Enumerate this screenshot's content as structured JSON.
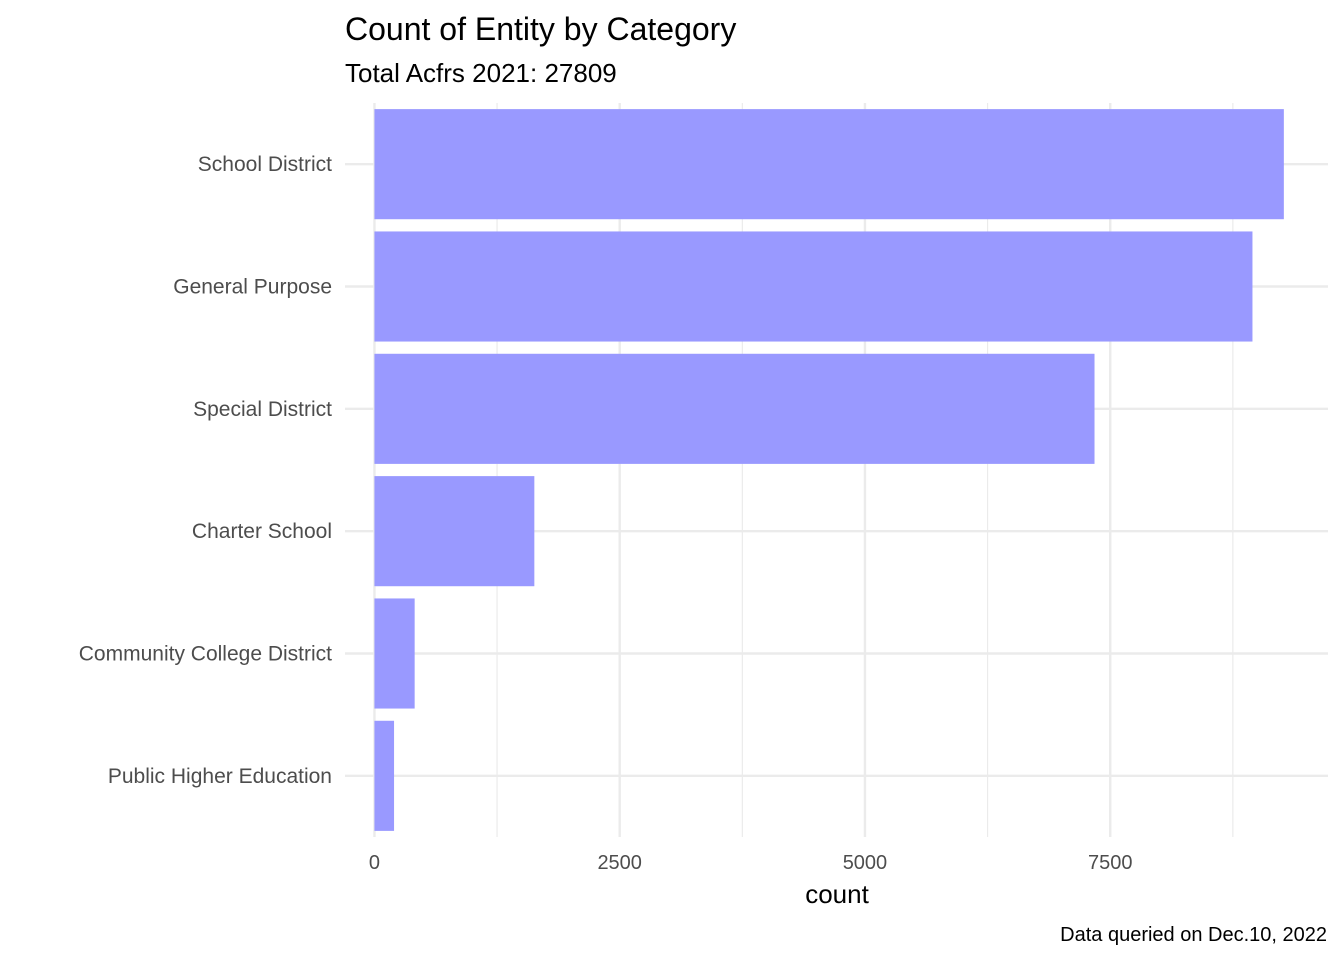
{
  "chart_data": {
    "type": "bar",
    "orientation": "horizontal",
    "title": "Count of Entity by Category",
    "subtitle": "Total Acfrs 2021: 27809",
    "xlabel": "count",
    "ylabel": "",
    "caption": "Data queried on Dec.10, 2022",
    "categories": [
      "School District",
      "General Purpose",
      "Special District",
      "Charter School",
      "Community College District",
      "Public Higher Education"
    ],
    "values": [
      9270,
      8950,
      7340,
      1630,
      410,
      200
    ],
    "xlim": [
      -300,
      9720
    ],
    "x_ticks": [
      0,
      2500,
      5000,
      7500
    ],
    "x_tick_labels": [
      "0",
      "2500",
      "5000",
      "7500"
    ],
    "grid": true,
    "bar_color": "#9999ff",
    "grid_color": "#ebebeb"
  }
}
